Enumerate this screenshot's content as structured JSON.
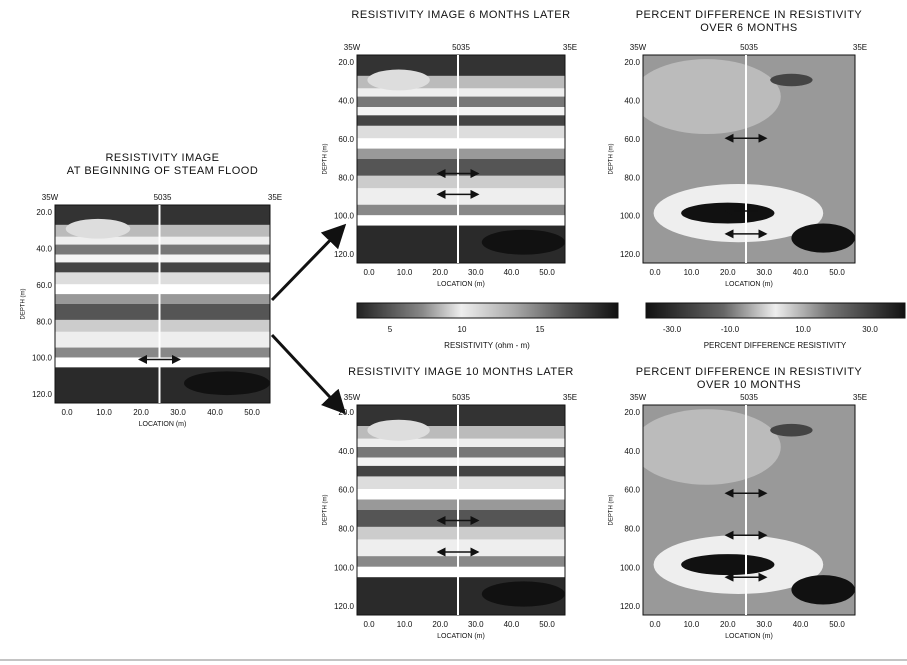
{
  "panels": [
    {
      "title": [
        "RESISTIVITY  IMAGE",
        "AT BEGINNING OF STEAM FLOOD"
      ],
      "wells": [
        "35W",
        "5035",
        "35E"
      ],
      "yticks": [
        "20.0",
        "40.0",
        "60.0",
        "80.0",
        "100.0",
        "120.0"
      ],
      "ylabel": "DEPTH (m)",
      "xticks": [
        "0.0",
        "10.0",
        "20.0",
        "30.0",
        "40.0",
        "50.0"
      ],
      "xlabel": "LOCATION (m)"
    },
    {
      "title": [
        "RESISTIVITY  IMAGE 6 MONTHS LATER"
      ],
      "wells": [
        "35W",
        "5035",
        "35E"
      ],
      "yticks": [
        "20.0",
        "40.0",
        "60.0",
        "80.0",
        "100.0",
        "120.0"
      ],
      "ylabel": "DEPTH (m)",
      "xticks": [
        "0.0",
        "10.0",
        "20.0",
        "30.0",
        "40.0",
        "50.0"
      ],
      "xlabel": "LOCATION (m)"
    },
    {
      "title": [
        "PERCENT DIFFERENCE IN RESISTIVITY",
        "OVER 6 MONTHS"
      ],
      "wells": [
        "35W",
        "5035",
        "35E"
      ],
      "yticks": [
        "20.0",
        "40.0",
        "60.0",
        "80.0",
        "100.0",
        "120.0"
      ],
      "ylabel": "DEPTH (m)",
      "xticks": [
        "0.0",
        "10.0",
        "20.0",
        "30.0",
        "40.0",
        "50.0"
      ],
      "xlabel": "LOCATION (m)"
    },
    {
      "title": [
        "RESISTIVITY  IMAGE 10 MONTHS LATER"
      ],
      "wells": [
        "35W",
        "5035",
        "35E"
      ],
      "yticks": [
        "20.0",
        "40.0",
        "60.0",
        "80.0",
        "100.0",
        "120.0"
      ],
      "ylabel": "DEPTH (m)",
      "xticks": [
        "0.0",
        "10.0",
        "20.0",
        "30.0",
        "40.0",
        "50.0"
      ],
      "xlabel": "LOCATION (m)"
    },
    {
      "title": [
        "PERCENT DIFFERENCE IN RESISTIVITY",
        "OVER 10 MONTHS"
      ],
      "wells": [
        "35W",
        "5035",
        "35E"
      ],
      "yticks": [
        "20.0",
        "40.0",
        "60.0",
        "80.0",
        "100.0",
        "120.0"
      ],
      "ylabel": "DEPTH (m)",
      "xticks": [
        "0.0",
        "10.0",
        "20.0",
        "30.0",
        "40.0",
        "50.0"
      ],
      "xlabel": "LOCATION (m)"
    }
  ],
  "colorbars": [
    {
      "ticks": [
        "5",
        "10",
        "15"
      ],
      "label": "RESISTIVITY  (ohm - m)"
    },
    {
      "ticks": [
        "-30.0",
        "-10.0",
        "10.0",
        "30.0"
      ],
      "label": "PERCENT DIFFERENCE RESISTIVITY"
    }
  ]
}
